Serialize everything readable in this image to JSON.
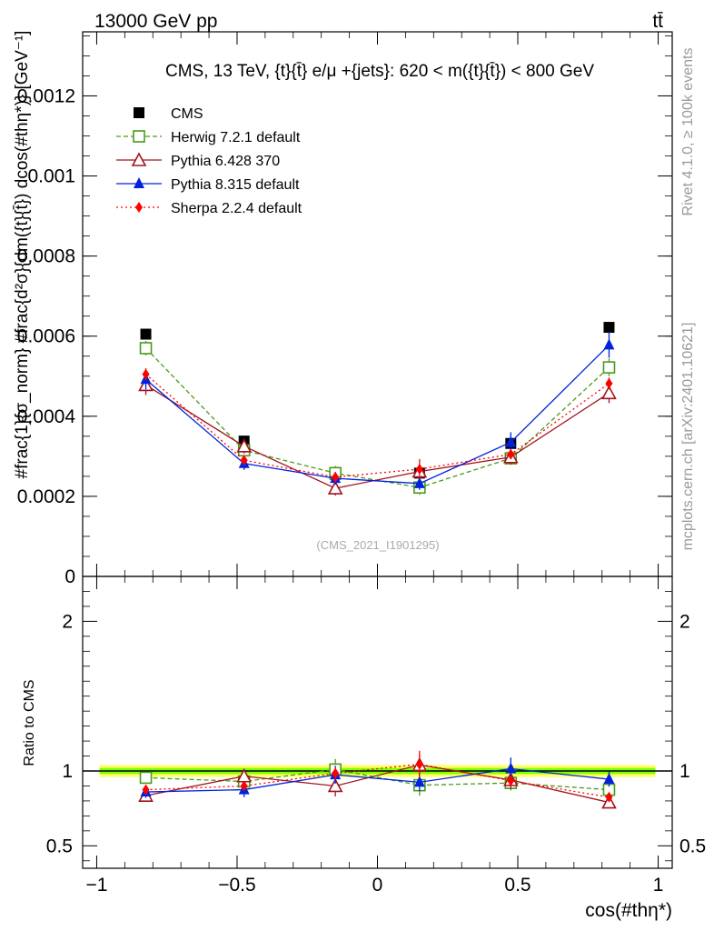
{
  "header": {
    "process": "13000 GeV pp",
    "final_state": "tt̄"
  },
  "side_labels": {
    "rivet": "Rivet 4.1.0, ≥ 100k events",
    "mcplots": "mcplots.cern.ch [arXiv:2401.10621]"
  },
  "chart_data": {
    "type": "scatter",
    "title": "CMS, 13 TeV, {t}{t̄} e/μ +{jets}: 620 < m({t}{t̄}) < 800 GeV",
    "watermark": "(CMS_2021_I1901295)",
    "xlabel": "cos(#thη*)",
    "ylabel": "#frac{1}{σ_norm} #frac{d²σ}{dm({t}{t̄}) dcos(#thη*)} [GeV⁻¹]",
    "ratio_ylabel": "Ratio to CMS",
    "xlim": [
      -1.05,
      1.05
    ],
    "ylim": [
      0,
      0.00136
    ],
    "ratio_ylim": [
      0.35,
      2.3
    ],
    "x_ticks": [
      -1,
      -0.5,
      0,
      0.5,
      1
    ],
    "x_tick_labels": [
      "−1",
      "−0.5",
      "0",
      "0.5",
      "1"
    ],
    "y_ticks": [
      0,
      0.0002,
      0.0004,
      0.0006,
      0.0008,
      0.001,
      0.0012
    ],
    "y_tick_labels": [
      "0",
      "0.0002",
      "0.0004",
      "0.0006",
      "0.0008",
      "0.001",
      "0.0012"
    ],
    "ratio_ticks": [
      0.5,
      1,
      2
    ],
    "ratio_tick_labels": [
      "0.5",
      "1",
      "2"
    ],
    "x": [
      -0.825,
      -0.475,
      -0.15,
      0.15,
      0.475,
      0.825
    ],
    "series": [
      {
        "name": "CMS",
        "color": "#000000",
        "marker": "square-filled",
        "dash": "none",
        "values": [
          0.000605,
          0.000338,
          0.000255,
          0.000258,
          0.000332,
          0.000622
        ],
        "errors": [
          1.2e-05,
          8e-06,
          7e-06,
          7e-06,
          8e-06,
          1.2e-05
        ]
      },
      {
        "name": "Herwig 7.2.1 default",
        "color": "#4a9a1a",
        "marker": "square-open",
        "dash": "5,3",
        "values": [
          0.00057,
          0.000315,
          0.000258,
          0.000222,
          0.000295,
          0.000522
        ],
        "errors": [
          1.8e-05,
          1.4e-05,
          1.8e-05,
          1.8e-05,
          1.6e-05,
          2.2e-05
        ]
      },
      {
        "name": "Pythia 6.428 370",
        "color": "#a0141e",
        "marker": "triangle-open",
        "dash": "none",
        "values": [
          0.000478,
          0.000325,
          0.00022,
          0.000262,
          0.000298,
          0.000458
        ],
        "errors": [
          2.5e-05,
          1.8e-05,
          1.8e-05,
          1.8e-05,
          1.8e-05,
          2.5e-05
        ]
      },
      {
        "name": "Pythia 8.315 default",
        "color": "#0022dd",
        "marker": "triangle-filled",
        "dash": "none",
        "values": [
          0.000492,
          0.000282,
          0.000245,
          0.000232,
          0.000335,
          0.000578
        ],
        "errors": [
          2.5e-05,
          1.6e-05,
          1.6e-05,
          1.6e-05,
          2.5e-05,
          3.2e-05
        ]
      },
      {
        "name": "Sherpa 2.2.4 default",
        "color": "#ff0000",
        "marker": "diamond-filled",
        "dash": "2,3",
        "values": [
          0.000505,
          0.00029,
          0.000248,
          0.000268,
          0.000305,
          0.000482
        ],
        "errors": [
          1.5e-05,
          1.2e-05,
          1.2e-05,
          2.5e-05,
          1.2e-05,
          1.5e-05
        ]
      }
    ],
    "ratio_series": [
      {
        "name": "Herwig 7.2.1 default",
        "values": [
          0.955,
          0.93,
          1.01,
          0.905,
          0.92,
          0.875
        ],
        "errors": [
          0.03,
          0.04,
          0.07,
          0.07,
          0.05,
          0.035
        ]
      },
      {
        "name": "Pythia 6.428 370",
        "values": [
          0.835,
          0.965,
          0.9,
          1.04,
          0.94,
          0.79
        ],
        "errors": [
          0.04,
          0.05,
          0.07,
          0.07,
          0.06,
          0.04
        ]
      },
      {
        "name": "Pythia 8.315 default",
        "values": [
          0.86,
          0.875,
          0.975,
          0.925,
          1.015,
          0.945
        ],
        "errors": [
          0.04,
          0.05,
          0.06,
          0.06,
          0.075,
          0.05
        ]
      },
      {
        "name": "Sherpa 2.2.4 default",
        "values": [
          0.875,
          0.9,
          0.985,
          1.045,
          0.935,
          0.825
        ],
        "errors": [
          0.02,
          0.03,
          0.04,
          0.09,
          0.03,
          0.02
        ]
      }
    ],
    "data_band": {
      "inner": 0.02,
      "outer": 0.04,
      "inner_color": "#7fff00",
      "outer_color": "#ffff66"
    }
  }
}
